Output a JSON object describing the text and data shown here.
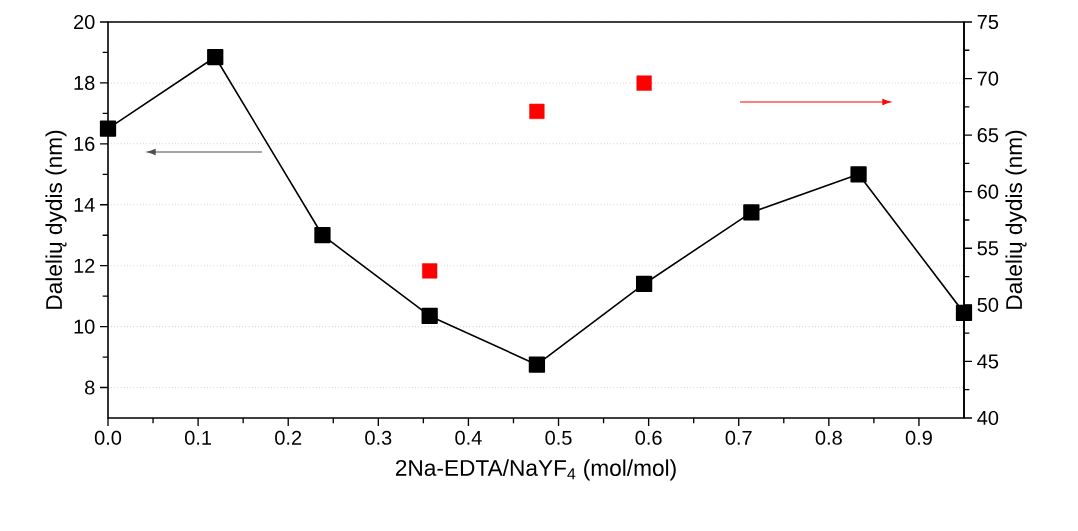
{
  "chart_data": {
    "type": "line",
    "xlabel": "2Na-EDTA/NaYF$_{4}$ (mol/mol)",
    "ylabel": "Dalelių dydis (nm)",
    "y2label": "Dalelių dydis (nm)",
    "x": [
      0,
      0.119,
      0.238,
      0.357,
      0.476,
      0.595,
      0.714,
      0.833,
      0.95
    ],
    "series": [
      {
        "color": "#000000",
        "marker": "square",
        "line_style": "solid",
        "values": [
          16.5,
          18.85,
          13.0,
          10.35,
          8.75,
          11.4,
          13.75,
          15.0,
          10.45
        ]
      },
      {
        "type": "scatter",
        "axis": "y2",
        "color": "#ff0000",
        "marker": "square",
        "values": [
          null,
          null,
          null,
          53.0,
          67.1,
          69.6,
          null,
          null,
          null
        ]
      }
    ],
    "xlim": [
      0,
      0.95
    ],
    "xticks": [
      {
        "value": 0,
        "label": "0.0"
      },
      0.1,
      0.2,
      0.3,
      0.4,
      0.5,
      0.6,
      0.7,
      0.8,
      0.9
    ],
    "ylim": [
      7,
      20
    ],
    "yticks": [
      8,
      10,
      12,
      14,
      16,
      18,
      20
    ],
    "y2lim": [
      40,
      75
    ],
    "y2ticks": [
      40,
      45,
      50,
      55,
      60,
      65,
      70,
      75
    ],
    "grid": "y"
  }
}
